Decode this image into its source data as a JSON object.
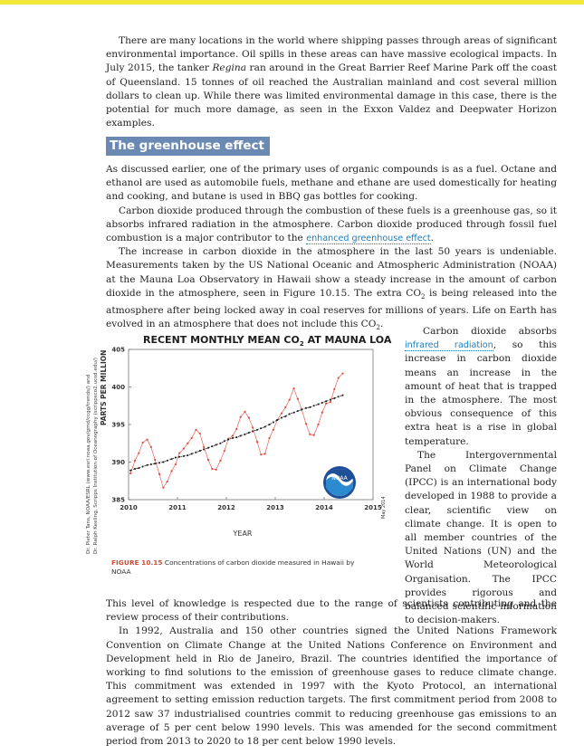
{
  "intro_paragraph": {
    "before": "There are many locations in the world where shipping passes through areas of significant environmental importance. Oil spills in these areas can have massive ecological impacts. In July 2015, the tanker ",
    "ship": "Regina",
    "after": " ran around in the Great Barrier Reef Marine Park off the coast of Queensland. 15 tonnes of oil reached the Australian mainland and cost several million dollars to clean up. While there was limited environmental damage in this case, there is the potential for much more damage, as seen in the Exxon Valdez and Deepwater Horizon examples."
  },
  "section_heading": "The greenhouse effect",
  "paragraphs": {
    "p1": "As discussed earlier, one of the primary uses of organic compounds is as a fuel. Octane and ethanol are used as automobile fuels, methane and ethane are used domestically for heating and cooking, and butane is used in BBQ gas bottles for cooking.",
    "p2_before": "Carbon dioxide produced through the combustion of these fuels is a greenhouse gas, so it absorbs infrared radiation in the atmosphere. Carbon dioxide produced through fossil fuel combustion is a major contributor to the ",
    "p2_link": "enhanced greenhouse effect",
    "p2_after": ".",
    "p3_a": "The increase in carbon dioxide in the atmosphere in the last 50 years is undeniable. Measurements taken by the US National Oceanic and Atmospheric Administration (NOAA) at the Mauna Loa Observatory in Hawaii show a steady increase in the amount of carbon dioxide in the atmosphere, seen in Figure 10.15. The extra CO",
    "p3_sub": "2",
    "p3_b": " is being released into the atmosphere after being locked away in coal reserves for millions of years. Life on Earth has evolved in an atmosphere that does not include this CO",
    "p3_sub2": "2",
    "p3_c": ".",
    "right1_before": "Carbon dioxide absorbs ",
    "right1_link": "infrared radiation",
    "right1_after": ", so this increase in carbon dioxide means an increase in the amount of heat that is trapped in the atmosphere. The most obvious consequence of this extra heat is a rise in global temperature.",
    "right2": "The Intergovernmental Panel on Climate Change (IPCC) is an international body developed in 1988 to provide a clear, scientific view on climate change. It is open to all member countries of the United Nations (UN) and the World Meteorological Organisation. The IPCC provides rigorous and balanced scientific information to decision-makers.",
    "continuation": "This level of knowledge is respected due to the range of scientists contributing and the review process of their contributions.",
    "p4": "In 1992, Australia and 150 other countries signed the United Nations Framework Convention on Climate Change at the United Nations Conference on Environment and Development held in Rio de Janeiro, Brazil. The countries identified the importance of working to find solutions to the emission of greenhouse gases to reduce climate change. This commitment was extended in 1997 with the Kyoto Protocol, an international agreement to setting emission reduction targets. The first commitment period from 2008 to 2012 saw 37 industrialised countries commit to reducing greenhouse gas emissions to an average of 5 per cent below 1990 levels. This was amended for the second commitment period from 2013 to 2020 to 18 per cent below 1990 levels."
  },
  "figure": {
    "label": "FIGURE 10.15",
    "caption": "Concentrations of carbon dioxide measured in Hawaii by NOAA",
    "credit_line1": "Dr. Pieter Tans, NOAA/ESRL (www.esrl.noaa.gov/gmd/ccgg/trends/) and",
    "credit_line2": "Dr. Ralph Keeling, Scripps Institution of Oceanography (scrippsco2.ucsd.edu/)",
    "noaa_logo_text": "NOAA",
    "date_stamp": "May 2014"
  },
  "chart_data": {
    "type": "line",
    "title_main": "RECENT MONTHLY MEAN CO",
    "title_sub": "2",
    "title_end": " AT MAUNA LOA",
    "xlabel": "YEAR",
    "ylabel": "PARTS PER MILLION",
    "xlim": [
      2010,
      2015
    ],
    "ylim": [
      385,
      405
    ],
    "xticks": [
      "2010",
      "2011",
      "2012",
      "2013",
      "2014",
      "2015"
    ],
    "yticks": [
      "385",
      "390",
      "395",
      "400",
      "405"
    ],
    "grid": false,
    "series": [
      {
        "kind": "monthly mean",
        "color": "#e0483a",
        "x": [
          2010.04,
          2010.13,
          2010.21,
          2010.29,
          2010.38,
          2010.46,
          2010.54,
          2010.63,
          2010.71,
          2010.79,
          2010.88,
          2010.96,
          2011.04,
          2011.13,
          2011.21,
          2011.29,
          2011.38,
          2011.46,
          2011.54,
          2011.63,
          2011.71,
          2011.79,
          2011.88,
          2011.96,
          2012.04,
          2012.13,
          2012.21,
          2012.29,
          2012.38,
          2012.46,
          2012.54,
          2012.63,
          2012.71,
          2012.79,
          2012.88,
          2012.96,
          2013.04,
          2013.13,
          2013.21,
          2013.29,
          2013.38,
          2013.46,
          2013.54,
          2013.63,
          2013.71,
          2013.79,
          2013.88,
          2013.96,
          2014.04,
          2014.13,
          2014.21,
          2014.29,
          2014.38
        ],
        "y": [
          388.5,
          390.2,
          391.2,
          392.6,
          393.0,
          392.0,
          390.3,
          388.4,
          386.6,
          387.4,
          388.8,
          389.7,
          391.2,
          391.8,
          392.5,
          393.2,
          394.3,
          393.8,
          392.0,
          390.3,
          389.1,
          389.0,
          390.2,
          391.5,
          393.1,
          393.5,
          394.4,
          396.0,
          396.7,
          395.9,
          394.6,
          392.7,
          391.0,
          391.1,
          393.2,
          394.3,
          395.6,
          396.5,
          397.3,
          398.3,
          399.8,
          398.4,
          397.0,
          395.1,
          393.7,
          393.6,
          395.0,
          396.6,
          397.8,
          398.0,
          399.7,
          401.2,
          401.8
        ]
      },
      {
        "kind": "seasonally corrected",
        "color": "#1d1d1d",
        "x": [
          2010.04,
          2010.13,
          2010.21,
          2010.29,
          2010.38,
          2010.46,
          2010.54,
          2010.63,
          2010.71,
          2010.79,
          2010.88,
          2010.96,
          2011.04,
          2011.13,
          2011.21,
          2011.29,
          2011.38,
          2011.46,
          2011.54,
          2011.63,
          2011.71,
          2011.79,
          2011.88,
          2011.96,
          2012.04,
          2012.13,
          2012.21,
          2012.29,
          2012.38,
          2012.46,
          2012.54,
          2012.63,
          2012.71,
          2012.79,
          2012.88,
          2012.96,
          2013.04,
          2013.13,
          2013.21,
          2013.29,
          2013.38,
          2013.46,
          2013.54,
          2013.63,
          2013.71,
          2013.79,
          2013.88,
          2013.96,
          2014.04,
          2014.13,
          2014.21,
          2014.29,
          2014.38
        ],
        "y": [
          388.9,
          389.1,
          389.2,
          389.4,
          389.6,
          389.7,
          389.8,
          389.9,
          390.0,
          390.2,
          390.4,
          390.6,
          390.7,
          390.8,
          390.9,
          391.1,
          391.3,
          391.5,
          391.7,
          391.9,
          392.1,
          392.3,
          392.5,
          392.8,
          393.0,
          393.2,
          393.3,
          393.5,
          393.7,
          393.9,
          394.1,
          394.3,
          394.5,
          394.7,
          395.0,
          395.3,
          395.6,
          395.9,
          396.1,
          396.4,
          396.6,
          396.8,
          397.0,
          397.2,
          397.3,
          397.5,
          397.7,
          397.9,
          398.1,
          398.3,
          398.5,
          398.7,
          398.9
        ]
      }
    ]
  }
}
